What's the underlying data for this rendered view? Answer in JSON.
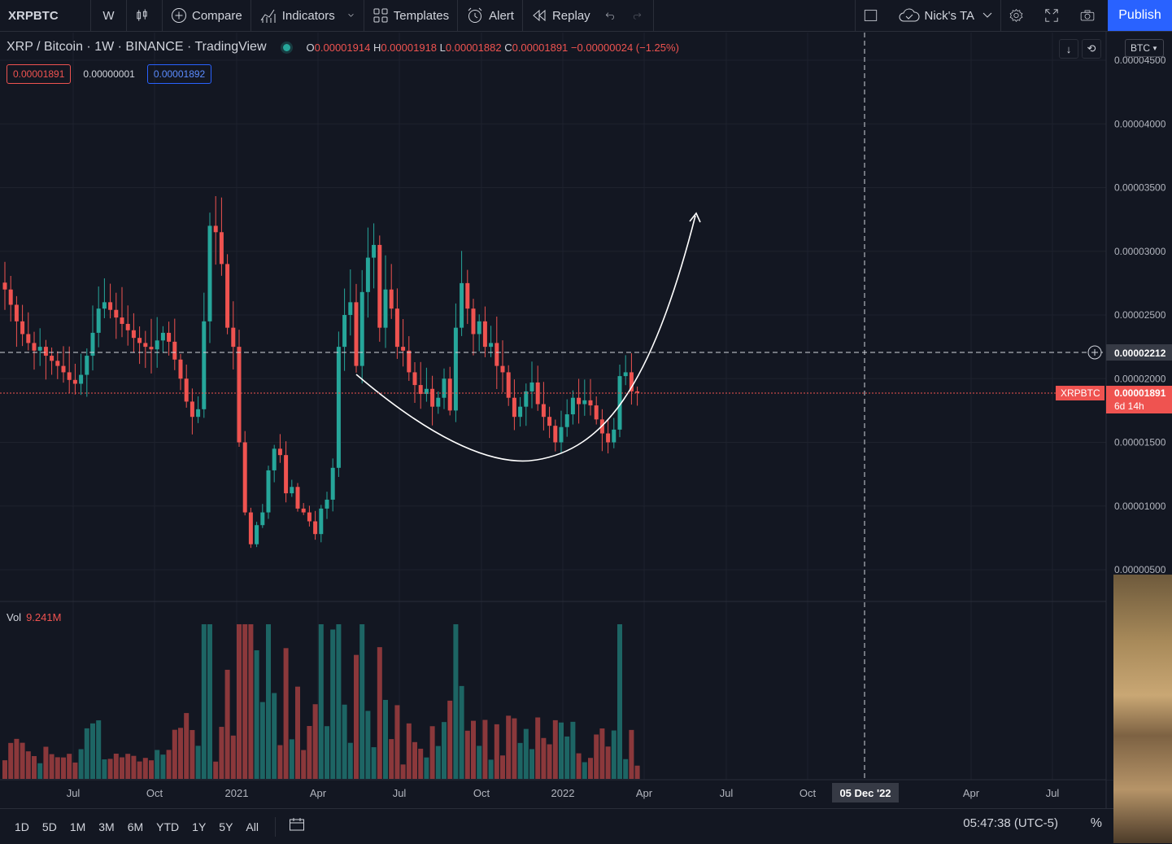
{
  "toolbar": {
    "symbol": "XRPBTC",
    "interval": "W",
    "compare": "Compare",
    "indicators": "Indicators",
    "templates": "Templates",
    "alert": "Alert",
    "replay": "Replay",
    "layout_name": "Nick's TA",
    "publish": "Publish"
  },
  "legend": {
    "title": "XRP / Bitcoin · 1W · BINANCE · TradingView",
    "o_label": "O",
    "o": "0.00001914",
    "h_label": "H",
    "h": "0.00001918",
    "l_label": "L",
    "l": "0.00001882",
    "c_label": "C",
    "c": "0.00001891",
    "change": "−0.00000024 (−1.25%)"
  },
  "order_boxes": {
    "sell": "0.00001891",
    "spread": "0.00000001",
    "buy": "0.00001892"
  },
  "scale_currency": "BTC",
  "price_axis": {
    "ticks": [
      "0.00004500",
      "0.00004000",
      "0.00003500",
      "0.00003000",
      "0.00002500",
      "0.00002000",
      "0.00001500",
      "0.00001000",
      "0.00000500"
    ],
    "crosshair_price": "0.00002212",
    "current_symbol": "XRPBTC",
    "current_price": "0.00001891",
    "countdown": "6d 14h"
  },
  "time_axis": {
    "labels": [
      "Jul",
      "Oct",
      "2021",
      "Apr",
      "Jul",
      "Oct",
      "2022",
      "Apr",
      "Jul",
      "Oct",
      "05 Dec '22",
      "Apr",
      "Jul"
    ],
    "crosshair_date": "05 Dec '22"
  },
  "volume": {
    "label": "Vol",
    "value": "9.241M"
  },
  "timeframes": [
    "1D",
    "5D",
    "1M",
    "3M",
    "6M",
    "YTD",
    "1Y",
    "5Y",
    "All"
  ],
  "clock": "05:47:38 (UTC-5)",
  "percent": "%",
  "colors": {
    "up": "#26a69a",
    "down": "#ef5350",
    "background": "#131722",
    "accent": "#2962ff"
  },
  "chart_data": {
    "type": "candlestick",
    "interval": "1W",
    "ylim": [
      4e-06,
      4.55e-05
    ],
    "note_drawings": "white curve (rounded bottom) with upward arrow",
    "weekly_close": [
      2.7e-05,
      2.58e-05,
      2.45e-05,
      2.35e-05,
      2.28e-05,
      2.22e-05,
      2.25e-05,
      2.18e-05,
      2.14e-05,
      2.1e-05,
      2.05e-05,
      1.99e-05,
      1.96e-05,
      2.03e-05,
      2.18e-05,
      2.36e-05,
      2.55e-05,
      2.6e-05,
      2.54e-05,
      2.48e-05,
      2.43e-05,
      2.38e-05,
      2.32e-05,
      2.28e-05,
      2.25e-05,
      2.23e-05,
      2.3e-05,
      2.36e-05,
      2.29e-05,
      2.15e-05,
      2e-05,
      1.82e-05,
      1.7e-05,
      1.76e-05,
      2.45e-05,
      3.2e-05,
      3.15e-05,
      2.9e-05,
      2.4e-05,
      2.25e-05,
      1.5e-05,
      9.5e-06,
      7e-06,
      8.5e-06,
      9.5e-06,
      1.28e-05,
      1.45e-05,
      1.4e-05,
      1.1e-05,
      1.15e-05,
      9.8e-06,
      9.5e-06,
      8.8e-06,
      7.8e-06,
      9.8e-06,
      1.05e-05,
      1.3e-05,
      2.25e-05,
      2.5e-05,
      2.6e-05,
      2.1e-05,
      2.68e-05,
      2.95e-05,
      3.05e-05,
      2.4e-05,
      2.7e-05,
      2.55e-05,
      2.25e-05,
      2.22e-05,
      2.05e-05,
      1.95e-05,
      1.88e-05,
      1.92e-05,
      1.78e-05,
      1.85e-05,
      2e-05,
      1.75e-05,
      2.4e-05,
      2.75e-05,
      2.55e-05,
      2.35e-05,
      2.45e-05,
      2.25e-05,
      2.28e-05,
      2.1e-05,
      2.05e-05,
      1.85e-05,
      1.7e-05,
      1.78e-05,
      1.9e-05,
      1.97e-05,
      1.8e-05,
      1.7e-05,
      1.63e-05,
      1.5e-05,
      1.62e-05,
      1.72e-05,
      1.85e-05,
      1.8e-05,
      1.83e-05,
      1.79e-05,
      1.68e-05,
      1.57e-05,
      1.5e-05,
      1.6e-05,
      2.02e-05,
      2.05e-05,
      1.9e-05,
      1.89e-05
    ]
  }
}
